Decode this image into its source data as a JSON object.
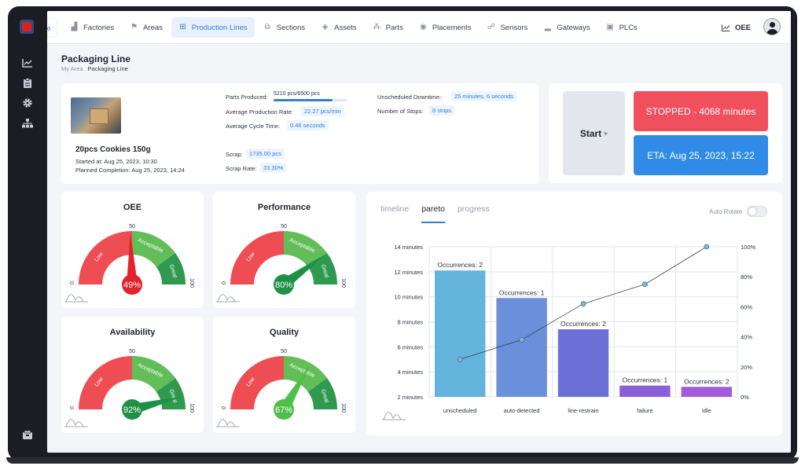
{
  "nav": {
    "items": [
      {
        "label": "Factories",
        "icon": "factory-icon"
      },
      {
        "label": "Areas",
        "icon": "flag-icon"
      },
      {
        "label": "Production Lines",
        "icon": "production-lines-icon",
        "active": true
      },
      {
        "label": "Sections",
        "icon": "sections-icon"
      },
      {
        "label": "Assets",
        "icon": "cube-icon"
      },
      {
        "label": "Parts",
        "icon": "parts-icon"
      },
      {
        "label": "Placements",
        "icon": "placement-icon"
      },
      {
        "label": "Sensors",
        "icon": "sensor-icon"
      },
      {
        "label": "Gateways",
        "icon": "gateway-icon"
      },
      {
        "label": "PLCs",
        "icon": "chip-icon"
      }
    ],
    "oee_label": "OEE"
  },
  "page": {
    "title": "Packaging Line",
    "breadcrumb": [
      "My Area",
      "Packaging Line"
    ]
  },
  "product": {
    "name": "20pcs Cookies 150g",
    "started": "Started at: Aug 25, 2023, 10:30",
    "planned": "Planned Completion: Aug 25, 2023, 14:24"
  },
  "stats": {
    "parts_produced_label": "Parts Produced:",
    "parts_produced_value": "5210 pcs/6500 pcs",
    "parts_produced_fraction": 0.8015,
    "avg_rate_label": "Average Production Rate:",
    "avg_rate_value": "22.27 pcs/min",
    "avg_cycle_label": "Average Cycle Time:",
    "avg_cycle_value": "0.46 seconds",
    "scrap_label": "Scrap:",
    "scrap_value": "1735.00 pcs",
    "scrap_rate_label": "Scrap Rate:",
    "scrap_rate_value": "33.30%",
    "downtime_label": "Unscheduled Downtime:",
    "downtime_value": "25 minutes, 6 seconds",
    "stops_label": "Number of Stops:",
    "stops_value": "8 stops"
  },
  "controls": {
    "start_label": "Start",
    "status_label": "STOPPED - 4068 minutes",
    "status_color": "#f0505e",
    "eta_label": "ETA: Aug 25, 2023, 15:22",
    "eta_color": "#2f8be6"
  },
  "gauges": [
    {
      "title": "OEE",
      "value": 49,
      "value_label": "49%",
      "needle_color": "#e3222c"
    },
    {
      "title": "Performance",
      "value": 80,
      "value_label": "80%",
      "needle_color": "#1e9147"
    },
    {
      "title": "Availability",
      "value": 92,
      "value_label": "92%",
      "needle_color": "#1e9147"
    },
    {
      "title": "Quality",
      "value": 67,
      "value_label": "67%",
      "needle_color": "#4fbf4a"
    }
  ],
  "gauge_scale": {
    "min": "0",
    "mid": "50",
    "max": "100",
    "band_low": "Low",
    "band_mid": "Acceptable",
    "band_high": "Great"
  },
  "chart_tabs": [
    "timeline",
    "pareto",
    "progress"
  ],
  "active_tab": "pareto",
  "auto_rotate_label": "Auto Rotate",
  "chart_data": {
    "type": "bar",
    "categories": [
      "unscheduled",
      "auto-detected",
      "line-restrain",
      "failure",
      "idle"
    ],
    "values": [
      12.1,
      9.9,
      7.4,
      2.9,
      2.8
    ],
    "bar_labels": [
      "Occurrences: 2",
      "Occurrences: 1",
      "Occurrences: 2",
      "Occurrences: 1",
      "Occurrences: 2"
    ],
    "bar_colors": [
      "#63b3dc",
      "#6a8fdb",
      "#6b6fd6",
      "#8a5fd9",
      "#a35cd8"
    ],
    "yticks": [
      "2 minutes",
      "4 minutes",
      "6 minutes",
      "8 minutes",
      "10 minutes",
      "12 minutes",
      "14 minutes"
    ],
    "ylim": [
      2,
      14
    ],
    "cumulative_percent": [
      25,
      38,
      62,
      75,
      100
    ],
    "y2ticks": [
      "0%",
      "20%",
      "40%",
      "60%",
      "80%",
      "100%"
    ],
    "y2lim": [
      0,
      100
    ],
    "grid": true
  }
}
